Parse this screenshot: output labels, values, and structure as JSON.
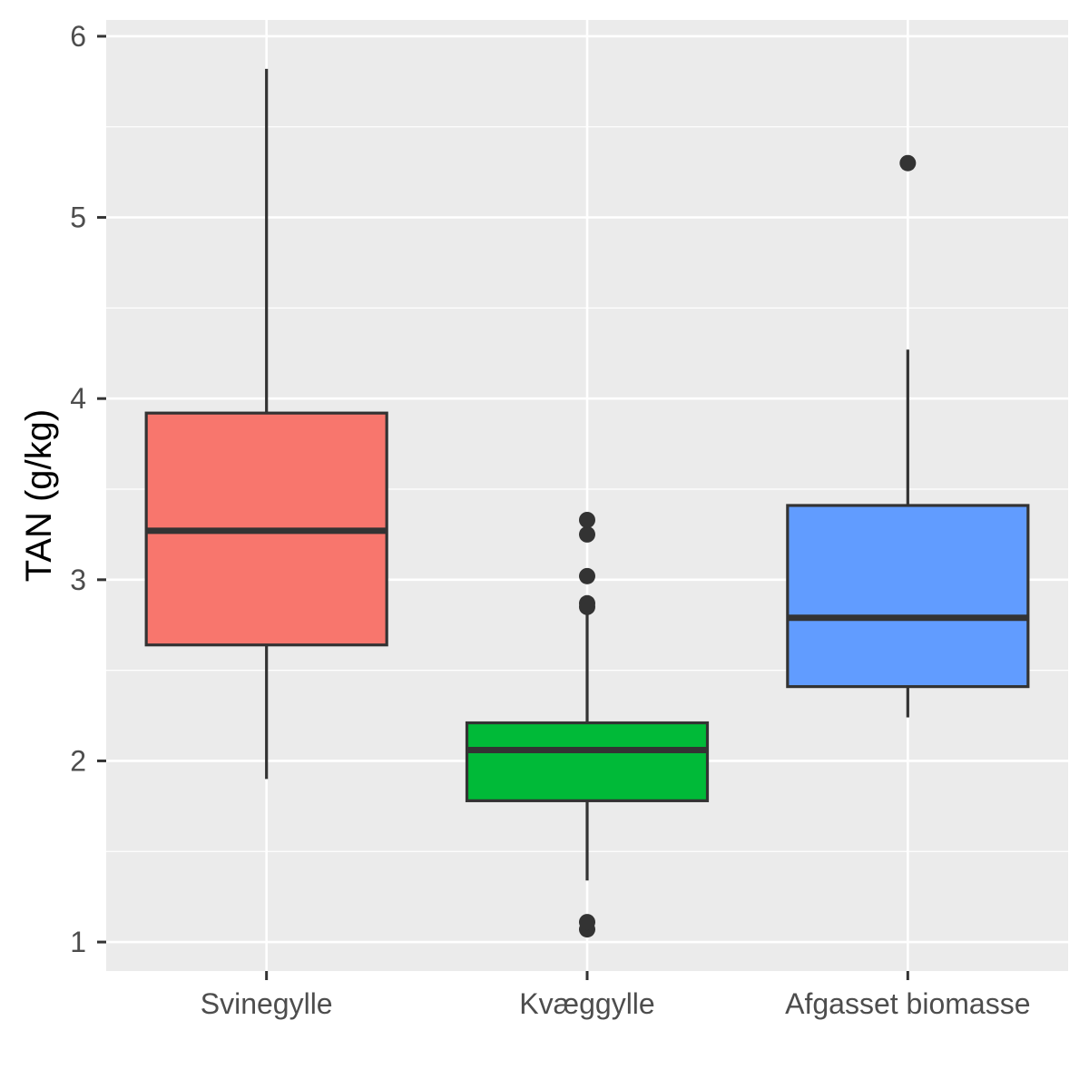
{
  "chart_data": {
    "type": "boxplot",
    "title": "",
    "xlabel": "",
    "ylabel": "TAN (g/kg)",
    "ylim": [
      0.84,
      6.09
    ],
    "y_ticks": [
      1,
      2,
      3,
      4,
      5,
      6
    ],
    "y_minor_ticks": [
      1.5,
      2.5,
      3.5,
      4.5,
      5.5
    ],
    "grid": true,
    "legend": "none",
    "colors": {
      "panel_background": "#ebebeb",
      "grid": "#ffffff",
      "box_outline": "#333333",
      "tick_text": "#4d4d4d"
    },
    "categories": [
      "Svinegylle",
      "Kvæggylle",
      "Afgasset biomasse"
    ],
    "series": [
      {
        "category": "Svinegylle",
        "fill": "#f8766d",
        "whisker_low": 1.9,
        "q1": 2.64,
        "median": 3.27,
        "q3": 3.92,
        "whisker_high": 5.82,
        "outliers": []
      },
      {
        "category": "Kvæggylle",
        "fill": "#00ba38",
        "whisker_low": 1.34,
        "q1": 1.78,
        "median": 2.06,
        "q3": 2.21,
        "whisker_high": 2.83,
        "outliers": [
          1.07,
          1.11,
          2.85,
          2.87,
          3.02,
          3.25,
          3.33
        ]
      },
      {
        "category": "Afgasset biomasse",
        "fill": "#619cff",
        "whisker_low": 2.24,
        "q1": 2.41,
        "median": 2.79,
        "q3": 3.41,
        "whisker_high": 4.27,
        "outliers": [
          5.3
        ]
      }
    ]
  }
}
